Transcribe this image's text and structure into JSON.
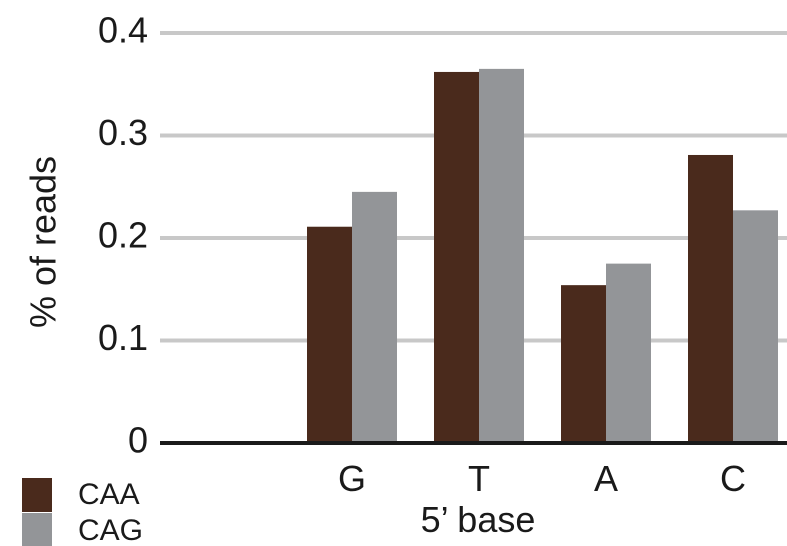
{
  "chart_data": {
    "type": "bar",
    "categories": [
      "G",
      "T",
      "A",
      "C"
    ],
    "series": [
      {
        "name": "CAA",
        "values": [
          0.211,
          0.362,
          0.154,
          0.281
        ],
        "color": "#4a2a1c"
      },
      {
        "name": "CAG",
        "values": [
          0.245,
          0.365,
          0.175,
          0.227
        ],
        "color": "#939598"
      }
    ],
    "title": "",
    "xlabel": "5’ base",
    "ylabel": "% of reads",
    "ylim": [
      0,
      0.4
    ],
    "yticks": [
      "0",
      "0.1",
      "0.2",
      "0.3",
      "0.4"
    ],
    "grid": true,
    "grid_color": "#c8c8c8",
    "legend_position": "bottom-left"
  }
}
